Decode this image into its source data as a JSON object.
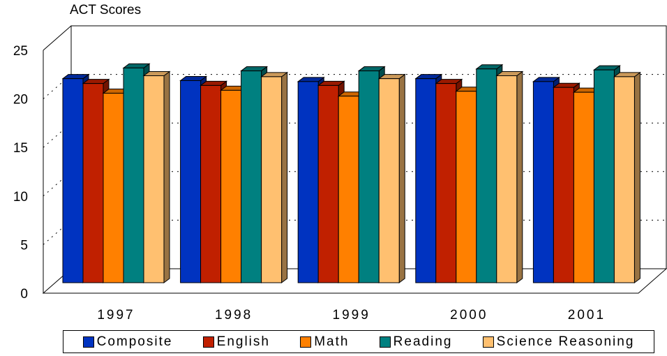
{
  "chart_data": {
    "type": "bar",
    "title": "ACT Scores",
    "categories": [
      "1997",
      "1998",
      "1999",
      "2000",
      "2001"
    ],
    "series": [
      {
        "name": "Composite",
        "values": [
          21.0,
          20.8,
          20.7,
          21.0,
          20.7
        ]
      },
      {
        "name": "English",
        "values": [
          20.5,
          20.3,
          20.3,
          20.5,
          20.1
        ]
      },
      {
        "name": "Math",
        "values": [
          19.5,
          19.8,
          19.2,
          19.7,
          19.6
        ]
      },
      {
        "name": "Reading",
        "values": [
          22.1,
          21.8,
          21.8,
          22.0,
          21.9
        ]
      },
      {
        "name": "Science Reasoning",
        "values": [
          21.3,
          21.2,
          21.0,
          21.3,
          21.2
        ]
      }
    ],
    "colors": [
      "#0033c0",
      "#c02000",
      "#ff8000",
      "#008080",
      "#ffc070"
    ],
    "yticks": [
      "0",
      "5",
      "10",
      "15",
      "20",
      "25"
    ],
    "ylim": [
      0,
      25
    ],
    "legend_position": "bottom"
  }
}
